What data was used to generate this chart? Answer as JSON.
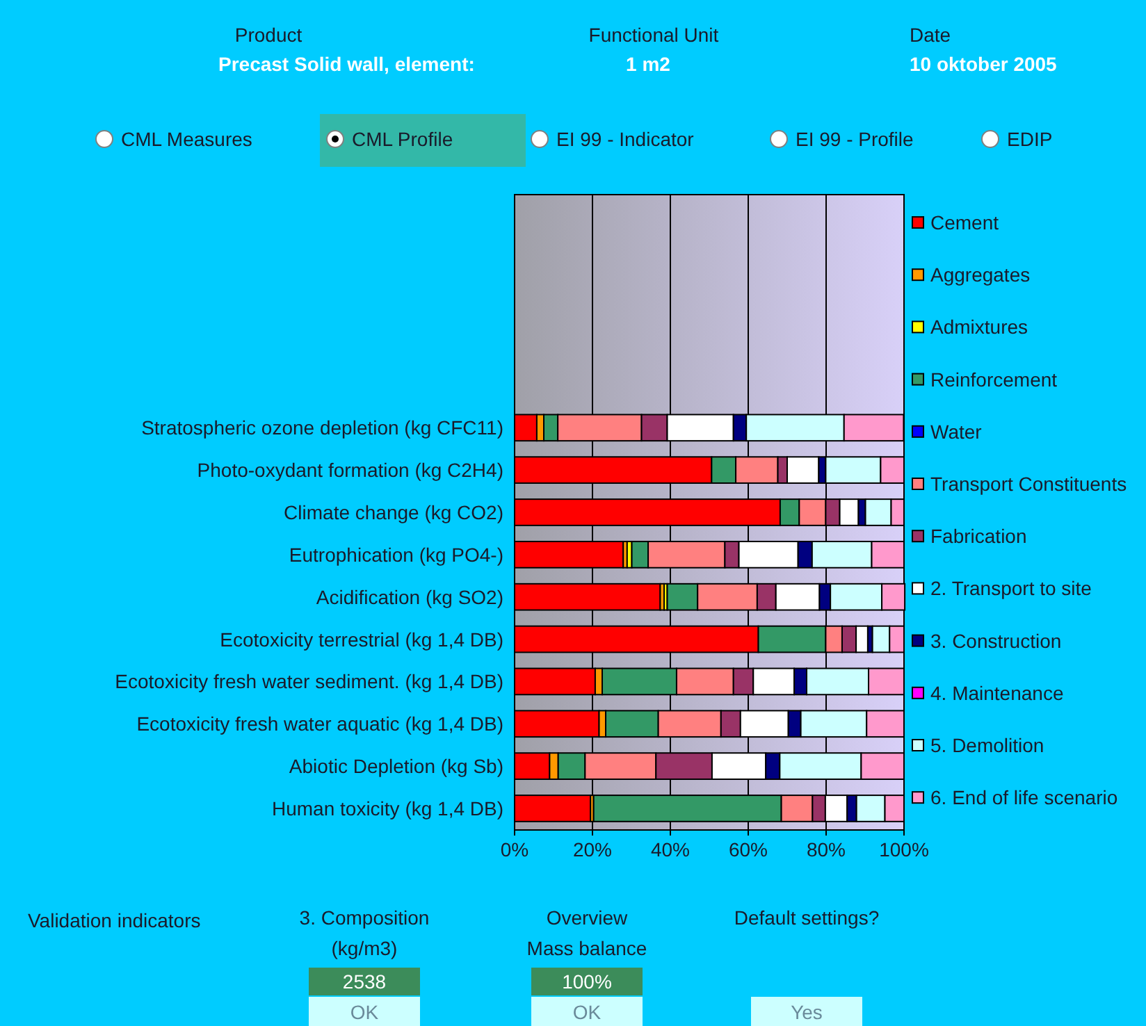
{
  "chart_data": {
    "type": "bar",
    "orientation": "horizontal",
    "stacked": true,
    "legend": "right",
    "grid": "x",
    "categories": [
      null,
      null,
      null,
      null,
      null,
      "Stratospheric ozone depletion (kg CFC11)",
      "Photo-oxydant formation (kg C2H4)",
      "Climate change (kg CO2)",
      "Eutrophication (kg PO4-)",
      "Acidification (kg SO2)",
      "Ecotoxicity terrestrial (kg 1,4 DB)",
      "Ecotoxicity fresh water sediment. (kg 1,4 DB)",
      "Ecotoxicity fresh water aquatic (kg 1,4 DB)",
      "Abiotic Depletion (kg Sb)",
      "Human toxicity (kg 1,4 DB)"
    ],
    "xlim": [
      0,
      100
    ],
    "xticks": [
      {
        "value": 0,
        "label": "0%"
      },
      {
        "value": 20,
        "label": "20%"
      },
      {
        "value": 40,
        "label": "40%"
      },
      {
        "value": 60,
        "label": "60%"
      },
      {
        "value": 80,
        "label": "80%"
      },
      {
        "value": 100,
        "label": "100%"
      }
    ],
    "series": [
      {
        "name": "Cement",
        "color": "#ff0000",
        "values": [
          null,
          null,
          null,
          null,
          null,
          5.7,
          50.6,
          68.2,
          27.9,
          37.4,
          62.6,
          20.7,
          21.7,
          9.0,
          19.5
        ]
      },
      {
        "name": "Aggregates",
        "color": "#ff9900",
        "values": [
          null,
          null,
          null,
          null,
          null,
          1.8,
          0,
          0,
          1.0,
          1.0,
          0,
          1.8,
          1.7,
          2.2,
          0.8
        ]
      },
      {
        "name": "Admixtures",
        "color": "#ffff00",
        "values": [
          null,
          null,
          null,
          null,
          null,
          0,
          0,
          0,
          1.2,
          0.8,
          0,
          0,
          0,
          0,
          0
        ]
      },
      {
        "name": "Reinforcement",
        "color": "#339966",
        "values": [
          null,
          null,
          null,
          null,
          null,
          3.6,
          6.2,
          4.9,
          4.2,
          7.8,
          17.3,
          19.1,
          13.5,
          6.9,
          48.2
        ]
      },
      {
        "name": "Water",
        "color": "#0000ff",
        "values": [
          null,
          null,
          null,
          null,
          null,
          0,
          0,
          0,
          0,
          0,
          0,
          0,
          0,
          0,
          0
        ]
      },
      {
        "name": "Transport Constituents",
        "color": "#ff8080",
        "values": [
          null,
          null,
          null,
          null,
          null,
          21.5,
          10.8,
          6.8,
          19.7,
          15.3,
          4.2,
          14.6,
          16.1,
          18.2,
          8.0
        ]
      },
      {
        "name": "Fabrication",
        "color": "#993366",
        "values": [
          null,
          null,
          null,
          null,
          null,
          6.6,
          2.4,
          3.6,
          3.6,
          4.8,
          3.6,
          5.1,
          5.0,
          14.4,
          3.3
        ]
      },
      {
        "name": "2. Transport to site",
        "color": "#ffffff",
        "values": [
          null,
          null,
          null,
          null,
          null,
          17.0,
          8.1,
          4.8,
          15.2,
          11.2,
          3.0,
          10.5,
          12.3,
          13.8,
          5.6
        ]
      },
      {
        "name": "3. Construction",
        "color": "#000080",
        "values": [
          null,
          null,
          null,
          null,
          null,
          3.3,
          1.8,
          1.8,
          3.6,
          2.8,
          1.2,
          3.2,
          3.2,
          3.6,
          2.4
        ]
      },
      {
        "name": "4. Maintenance",
        "color": "#ff00ff",
        "values": [
          null,
          null,
          null,
          null,
          null,
          0,
          0,
          0,
          0,
          0,
          0,
          0,
          0,
          0,
          0
        ]
      },
      {
        "name": "5. Demolition",
        "color": "#ccffff",
        "values": [
          null,
          null,
          null,
          null,
          null,
          25.1,
          14.1,
          6.6,
          15.3,
          13.2,
          4.4,
          15.9,
          16.9,
          20.9,
          7.3
        ]
      },
      {
        "name": "6. End of life scenario",
        "color": "#ff99cc",
        "values": [
          null,
          null,
          null,
          null,
          null,
          15.3,
          6.0,
          3.3,
          8.3,
          5.9,
          3.7,
          9.1,
          9.6,
          11.0,
          4.9
        ]
      }
    ],
    "annotations": [
      "Product",
      "Precast  Solid wall, element:",
      "Functional Unit",
      "1  m2",
      "Date",
      "10 oktober 2005",
      "CML Measures",
      "CML Profile",
      "EI 99 - Indicator",
      "EI 99 - Profile",
      "EDIP",
      "Validation indicators",
      "3. Composition",
      "(kg/m3)",
      "2538",
      "OK",
      "Overview",
      "Mass balance",
      "100%",
      "OK",
      "Default settings?",
      "Yes"
    ]
  }
}
